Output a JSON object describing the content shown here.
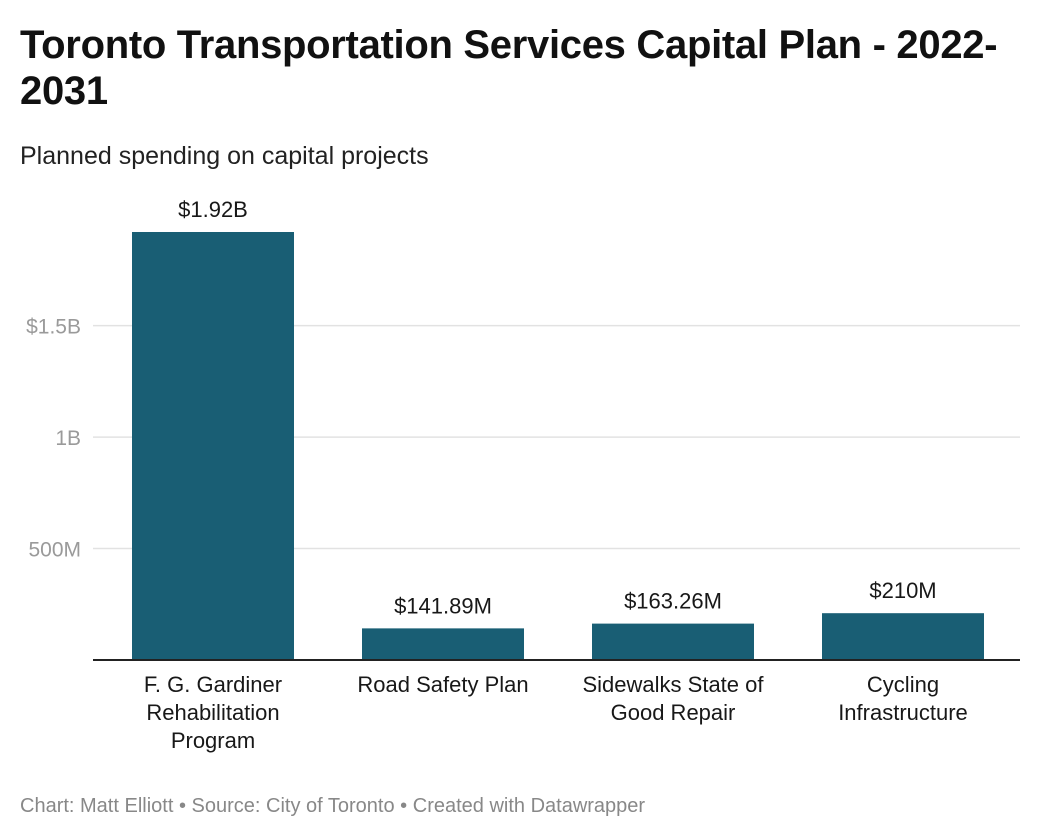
{
  "title": "Toronto Transportation Services Capital Plan - 2022-2031",
  "subtitle": "Planned spending on capital projects",
  "footer": {
    "chart_credit": "Chart: Matt Elliott",
    "separator": "•",
    "source": "Source: City of Toronto",
    "created_with": "Created with Datawrapper"
  },
  "colors": {
    "bar": "#195e74",
    "grid": "#e2e2e2",
    "baseline": "#222222",
    "tick_text": "#9a9a9a",
    "label_text": "#181818"
  },
  "chart_data": {
    "type": "bar",
    "title": "Toronto Transportation Services Capital Plan - 2022-2031",
    "subtitle": "Planned spending on capital projects",
    "categories": [
      [
        "F. G. Gardiner",
        "Rehabilitation",
        "Program"
      ],
      [
        "Road Safety Plan"
      ],
      [
        "Sidewalks State of",
        "Good Repair"
      ],
      [
        "Cycling",
        "Infrastructure"
      ]
    ],
    "values": [
      1920000000,
      141890000,
      163260000,
      210000000
    ],
    "value_labels": [
      "$1.92B",
      "$141.89M",
      "$163.26M",
      "$210M"
    ],
    "y_ticks": [
      {
        "value": 500000000,
        "label": "500M"
      },
      {
        "value": 1000000000,
        "label": "1B"
      },
      {
        "value": 1500000000,
        "label": "$1.5B"
      }
    ],
    "ylim": [
      0,
      1920000000
    ],
    "xlabel": "",
    "ylabel": "",
    "grid": true,
    "legend": "none"
  }
}
